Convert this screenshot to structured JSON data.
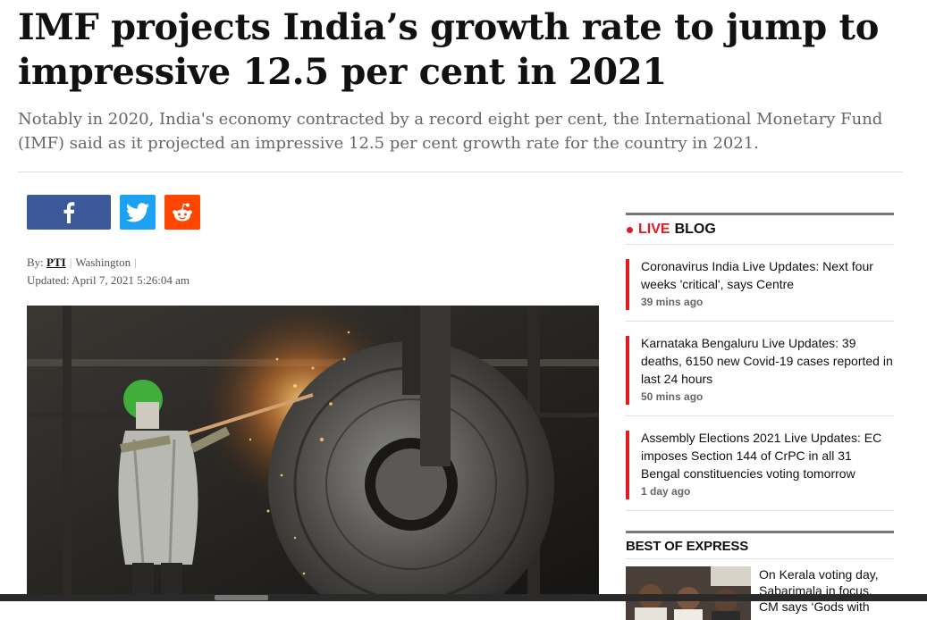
{
  "article": {
    "headline": "IMF projects India’s growth rate to jump to impressive 12.5 per cent in 2021",
    "subheadline": "Notably in 2020, India's economy contracted by a record eight per cent, the International Monetary Fund (IMF) said as it projected an impressive 12.5 per cent growth rate for the country in 2021.",
    "byline": {
      "by_label": "By:",
      "author": "PTI",
      "location": "Washington",
      "updated": "Updated: April 7, 2021 5:26:04 am"
    },
    "share": [
      "facebook-icon",
      "twitter-icon",
      "reddit-icon"
    ]
  },
  "sidebar": {
    "live_label": "LIVE",
    "blog_label": "BLOG",
    "live_items": [
      {
        "title": "Coronavirus India Live Updates: Next four weeks 'critical', says Centre",
        "time": "39 mins ago"
      },
      {
        "title": "Karnataka Bengaluru Live Updates: 39 deaths, 6150 new Covid-19 cases reported in last 24 hours",
        "time": "50 mins ago"
      },
      {
        "title": "Assembly Elections 2021 Live Updates: EC imposes Section 144 of CrPC in all 31 Bengal constituencies voting tomorrow",
        "time": "1 day ago"
      }
    ],
    "best_label": "BEST OF EXPRESS",
    "best_items": [
      {
        "title": "On Kerala voting day, Sabarimala in focus, CM says ‘Gods with"
      }
    ]
  },
  "colors": {
    "accent_red": "#e21b22",
    "facebook": "#3b5998",
    "twitter": "#1da1f2",
    "reddit": "#ff4500"
  }
}
